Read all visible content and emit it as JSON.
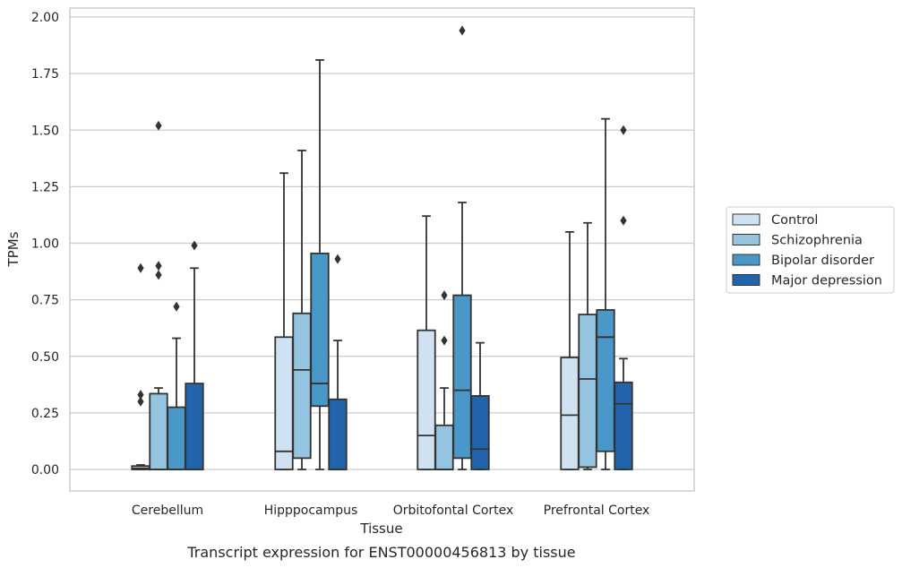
{
  "chart_data": {
    "type": "boxplot",
    "caption": "Transcript expression for ENST00000456813 by tissue",
    "xlabel": "Tissue",
    "ylabel": "TPMs",
    "ylim": [
      -0.1,
      2.04
    ],
    "yticks": [
      "0.00",
      "0.25",
      "0.50",
      "0.75",
      "1.00",
      "1.25",
      "1.50",
      "1.75",
      "2.00"
    ],
    "grid": "horizontal",
    "legend_position": "right",
    "categories": [
      "Cerebellum",
      "Hipppocampus",
      "Orbitofontal Cortex",
      "Prefrontal Cortex"
    ],
    "series": [
      {
        "name": "Control",
        "color": "#d0e1f2",
        "boxes": [
          {
            "whisker_low": 0.0,
            "q1": 0.0,
            "median": 0.005,
            "q3": 0.015,
            "whisker_high": 0.02,
            "outliers": [
              0.3,
              0.33,
              0.89
            ]
          },
          {
            "whisker_low": 0.0,
            "q1": 0.0,
            "median": 0.08,
            "q3": 0.585,
            "whisker_high": 1.31,
            "outliers": []
          },
          {
            "whisker_low": 0.0,
            "q1": 0.0,
            "median": 0.15,
            "q3": 0.615,
            "whisker_high": 1.12,
            "outliers": []
          },
          {
            "whisker_low": 0.0,
            "q1": 0.0,
            "median": 0.24,
            "q3": 0.495,
            "whisker_high": 1.05,
            "outliers": []
          }
        ]
      },
      {
        "name": "Schizophrenia",
        "color": "#94c4df",
        "boxes": [
          {
            "whisker_low": 0.0,
            "q1": 0.0,
            "median": 0.0,
            "q3": 0.335,
            "whisker_high": 0.36,
            "outliers": [
              0.86,
              0.9,
              1.52
            ]
          },
          {
            "whisker_low": 0.0,
            "q1": 0.05,
            "median": 0.44,
            "q3": 0.69,
            "whisker_high": 1.41,
            "outliers": []
          },
          {
            "whisker_low": 0.0,
            "q1": 0.0,
            "median": 0.0,
            "q3": 0.195,
            "whisker_high": 0.36,
            "outliers": [
              0.57,
              0.77
            ]
          },
          {
            "whisker_low": 0.0,
            "q1": 0.01,
            "median": 0.4,
            "q3": 0.685,
            "whisker_high": 1.09,
            "outliers": []
          }
        ]
      },
      {
        "name": "Bipolar disorder",
        "color": "#4a98c9",
        "boxes": [
          {
            "whisker_low": 0.0,
            "q1": 0.0,
            "median": 0.0,
            "q3": 0.275,
            "whisker_high": 0.58,
            "outliers": [
              0.72
            ]
          },
          {
            "whisker_low": 0.0,
            "q1": 0.28,
            "median": 0.38,
            "q3": 0.955,
            "whisker_high": 1.81,
            "outliers": []
          },
          {
            "whisker_low": 0.0,
            "q1": 0.05,
            "median": 0.35,
            "q3": 0.77,
            "whisker_high": 1.18,
            "outliers": [
              1.94
            ]
          },
          {
            "whisker_low": 0.0,
            "q1": 0.08,
            "median": 0.585,
            "q3": 0.705,
            "whisker_high": 1.55,
            "outliers": []
          }
        ]
      },
      {
        "name": "Major depression",
        "color": "#2164ab",
        "boxes": [
          {
            "whisker_low": 0.0,
            "q1": 0.0,
            "median": 0.0,
            "q3": 0.38,
            "whisker_high": 0.89,
            "outliers": [
              0.99
            ]
          },
          {
            "whisker_low": 0.0,
            "q1": 0.0,
            "median": 0.0,
            "q3": 0.31,
            "whisker_high": 0.57,
            "outliers": [
              0.93
            ]
          },
          {
            "whisker_low": 0.0,
            "q1": 0.0,
            "median": 0.09,
            "q3": 0.325,
            "whisker_high": 0.56,
            "outliers": []
          },
          {
            "whisker_low": 0.0,
            "q1": 0.0,
            "median": 0.29,
            "q3": 0.385,
            "whisker_high": 0.49,
            "outliers": [
              1.1,
              1.5
            ]
          }
        ]
      }
    ]
  }
}
